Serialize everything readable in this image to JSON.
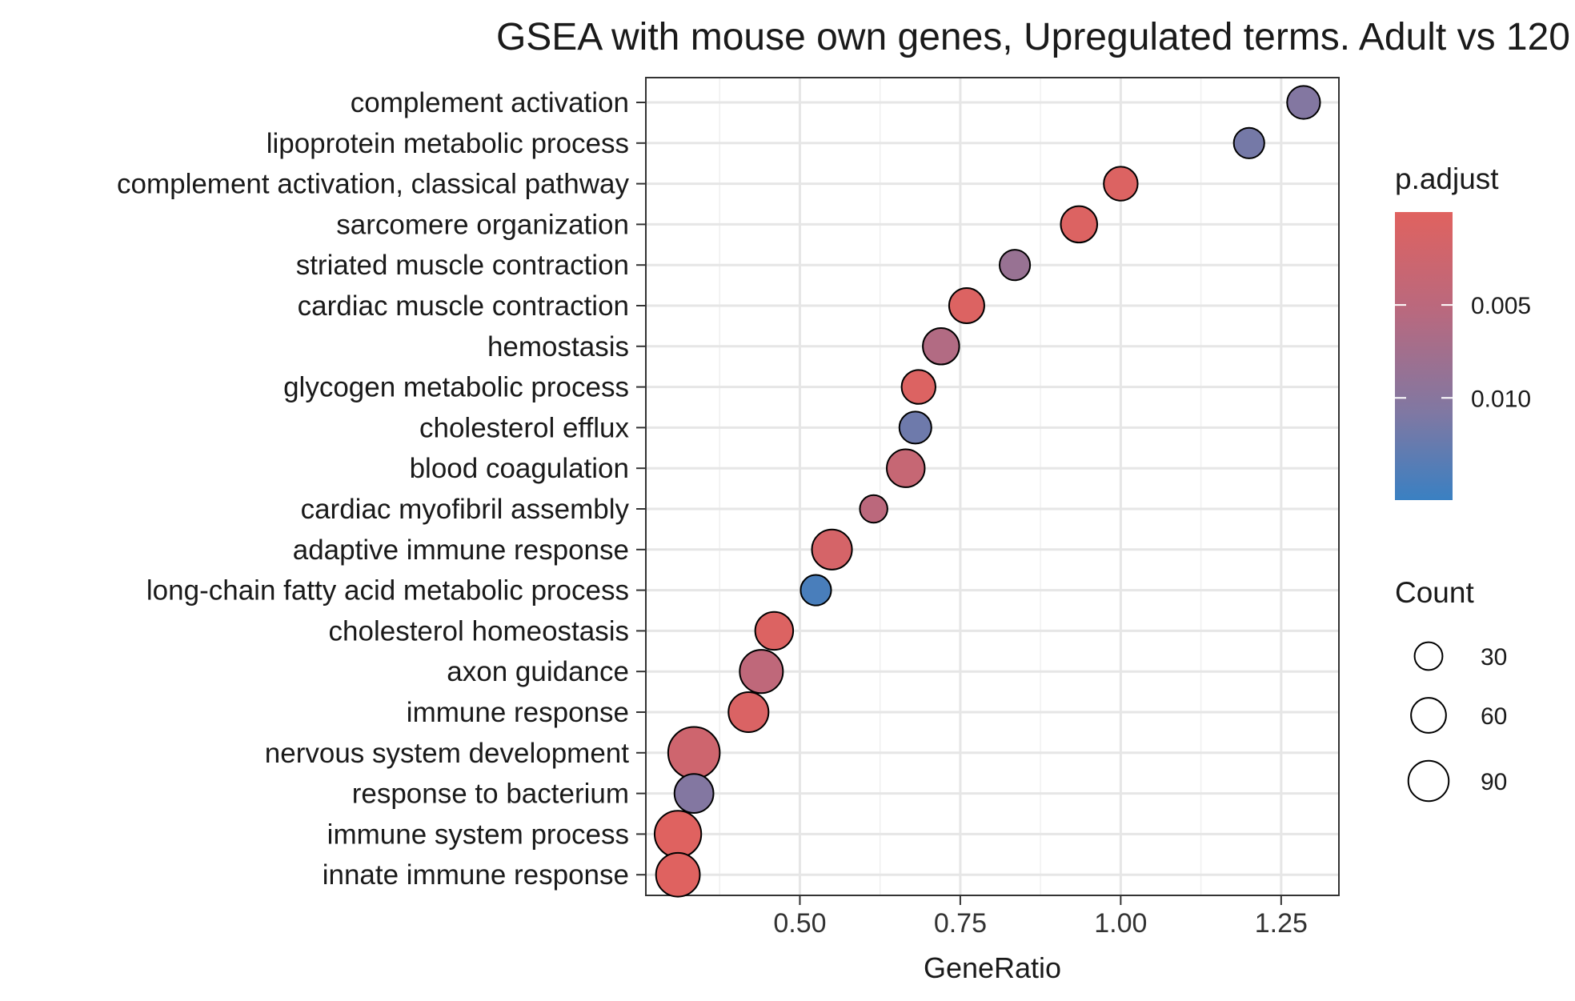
{
  "chart_data": {
    "type": "scatter",
    "title": "GSEA with mouse own genes, Upregulated terms. Adult vs 120",
    "xlabel": "GeneRatio",
    "ylabel": "",
    "xlim": [
      0.26,
      1.34
    ],
    "xticks": [
      0.5,
      0.75,
      1.0,
      1.25
    ],
    "xtick_labels": [
      "0.50",
      "0.75",
      "1.00",
      "1.25"
    ],
    "grid": true,
    "legend_position": "right",
    "points": [
      {
        "term": "complement activation",
        "gene_ratio": 1.285,
        "count": 20,
        "p_adjust": 0.0105
      },
      {
        "term": "lipoprotein metabolic process",
        "gene_ratio": 1.2,
        "count": 15,
        "p_adjust": 0.0115
      },
      {
        "term": "complement activation, classical pathway",
        "gene_ratio": 1.0,
        "count": 22,
        "p_adjust": 0.0005
      },
      {
        "term": "sarcomere organization",
        "gene_ratio": 0.935,
        "count": 28,
        "p_adjust": 0.0005
      },
      {
        "term": "striated muscle contraction",
        "gene_ratio": 0.835,
        "count": 15,
        "p_adjust": 0.0085
      },
      {
        "term": "cardiac muscle contraction",
        "gene_ratio": 0.76,
        "count": 25,
        "p_adjust": 0.0005
      },
      {
        "term": "hemostasis",
        "gene_ratio": 0.72,
        "count": 28,
        "p_adjust": 0.006
      },
      {
        "term": "glycogen metabolic process",
        "gene_ratio": 0.685,
        "count": 22,
        "p_adjust": 0.0005
      },
      {
        "term": "cholesterol efflux",
        "gene_ratio": 0.68,
        "count": 18,
        "p_adjust": 0.012
      },
      {
        "term": "blood coagulation",
        "gene_ratio": 0.665,
        "count": 32,
        "p_adjust": 0.0035
      },
      {
        "term": "cardiac myofibril assembly",
        "gene_ratio": 0.615,
        "count": 10,
        "p_adjust": 0.005
      },
      {
        "term": "adaptive immune response",
        "gene_ratio": 0.55,
        "count": 38,
        "p_adjust": 0.0015
      },
      {
        "term": "long-chain fatty acid metabolic process",
        "gene_ratio": 0.525,
        "count": 15,
        "p_adjust": 0.0145
      },
      {
        "term": "cholesterol homeostasis",
        "gene_ratio": 0.46,
        "count": 32,
        "p_adjust": 0.0005
      },
      {
        "term": "axon guidance",
        "gene_ratio": 0.44,
        "count": 48,
        "p_adjust": 0.0045
      },
      {
        "term": "immune response",
        "gene_ratio": 0.42,
        "count": 38,
        "p_adjust": 0.0008
      },
      {
        "term": "nervous system development",
        "gene_ratio": 0.335,
        "count": 80,
        "p_adjust": 0.0025
      },
      {
        "term": "response to bacterium",
        "gene_ratio": 0.335,
        "count": 35,
        "p_adjust": 0.0105
      },
      {
        "term": "immune system process",
        "gene_ratio": 0.31,
        "count": 60,
        "p_adjust": 0.0002
      },
      {
        "term": "innate immune response",
        "gene_ratio": 0.31,
        "count": 50,
        "p_adjust": 0.0002
      }
    ],
    "color_legend": {
      "title": "p.adjust",
      "range": [
        0.0,
        0.0155
      ],
      "ticks": [
        0.005,
        0.01
      ],
      "tick_labels": [
        "0.005",
        "0.010"
      ],
      "color_low_p": "#e0625f",
      "color_high_p": "#3a80c2"
    },
    "size_legend": {
      "title": "Count",
      "values": [
        30,
        60,
        90
      ],
      "labels": [
        "30",
        "60",
        "90"
      ]
    }
  }
}
